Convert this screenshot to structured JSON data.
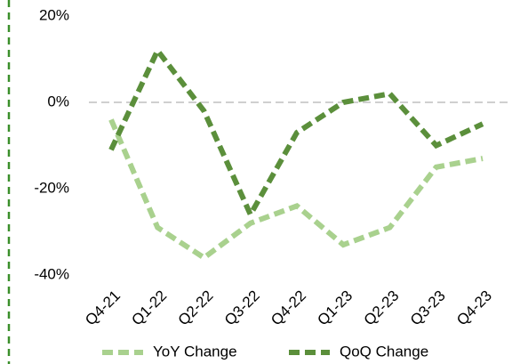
{
  "chart_data": {
    "type": "line",
    "categories": [
      "Q4-21",
      "Q1-22",
      "Q2-22",
      "Q3-22",
      "Q4-22",
      "Q1-23",
      "Q2-23",
      "Q3-23",
      "Q4-23"
    ],
    "series": [
      {
        "name": "YoY Change",
        "color": "#a9d18e",
        "values": [
          -4,
          -29,
          -36,
          -28,
          -24,
          -33,
          -29,
          -15,
          -13
        ]
      },
      {
        "name": "QoQ Change",
        "color": "#5b8f3b",
        "values": [
          -11,
          12,
          -2,
          -26,
          -7,
          0,
          2,
          -10,
          -5
        ]
      }
    ],
    "ylim": [
      -40,
      20
    ],
    "yticks": [
      {
        "value": 20,
        "label": "20%"
      },
      {
        "value": 0,
        "label": "0%"
      },
      {
        "value": -20,
        "label": "-20%"
      },
      {
        "value": -40,
        "label": "-40%"
      }
    ],
    "zero_line": true,
    "legend": "bottom"
  }
}
